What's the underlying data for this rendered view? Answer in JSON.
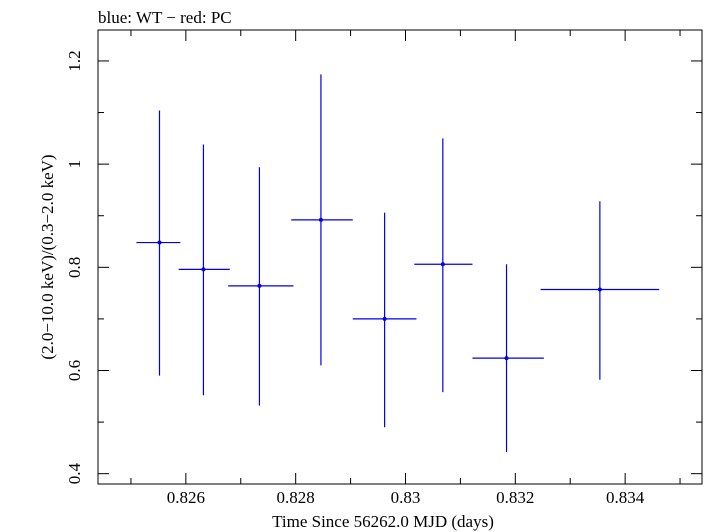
{
  "chart_data": {
    "type": "scatter",
    "title": "blue: WT − red: PC",
    "xlabel": "Time Since 56262.0 MJD (days)",
    "ylabel": "(2.0−10.0 keV)/(0.3−2.0 keV)",
    "xlim": [
      0.8244,
      0.8354
    ],
    "ylim": [
      0.38,
      1.26
    ],
    "x_ticks": [
      {
        "value": 0.826,
        "label": "0.826"
      },
      {
        "value": 0.828,
        "label": "0.828"
      },
      {
        "value": 0.83,
        "label": "0.83"
      },
      {
        "value": 0.832,
        "label": "0.832"
      },
      {
        "value": 0.834,
        "label": "0.834"
      }
    ],
    "y_ticks": [
      {
        "value": 0.4,
        "label": "0.4"
      },
      {
        "value": 0.6,
        "label": "0.6"
      },
      {
        "value": 0.8,
        "label": "0.8"
      },
      {
        "value": 1.0,
        "label": "1"
      },
      {
        "value": 1.2,
        "label": "1.2"
      }
    ],
    "series": [
      {
        "name": "WT",
        "color": "#0000ee",
        "points": [
          {
            "x": 0.82552,
            "xerr_lo": 0.00042,
            "xerr_hi": 0.00038,
            "y": 0.848,
            "y_lo": 0.59,
            "y_hi": 1.104
          },
          {
            "x": 0.82632,
            "xerr_lo": 0.00045,
            "xerr_hi": 0.00048,
            "y": 0.796,
            "y_lo": 0.552,
            "y_hi": 1.038
          },
          {
            "x": 0.82734,
            "xerr_lo": 0.00057,
            "xerr_hi": 0.00062,
            "y": 0.764,
            "y_lo": 0.532,
            "y_hi": 0.994
          },
          {
            "x": 0.82846,
            "xerr_lo": 0.00054,
            "xerr_hi": 0.00058,
            "y": 0.892,
            "y_lo": 0.61,
            "y_hi": 1.174
          },
          {
            "x": 0.82962,
            "xerr_lo": 0.00058,
            "xerr_hi": 0.00058,
            "y": 0.7,
            "y_lo": 0.49,
            "y_hi": 0.906
          },
          {
            "x": 0.83068,
            "xerr_lo": 0.00052,
            "xerr_hi": 0.00054,
            "y": 0.806,
            "y_lo": 0.558,
            "y_hi": 1.05
          },
          {
            "x": 0.83184,
            "xerr_lo": 0.00062,
            "xerr_hi": 0.00068,
            "y": 0.624,
            "y_lo": 0.442,
            "y_hi": 0.806
          },
          {
            "x": 0.83354,
            "xerr_lo": 0.00108,
            "xerr_hi": 0.00108,
            "y": 0.757,
            "y_lo": 0.582,
            "y_hi": 0.928
          }
        ]
      }
    ]
  }
}
